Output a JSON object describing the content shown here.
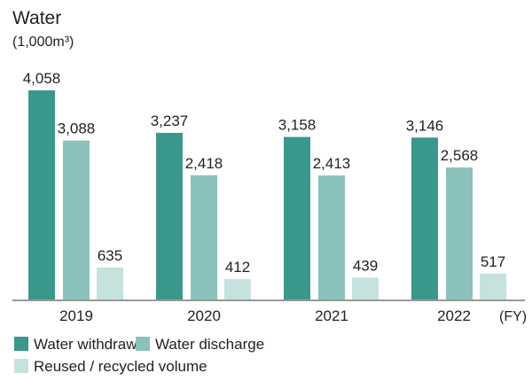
{
  "chart_data": {
    "type": "bar",
    "title": "Water",
    "ylabel": "(1,000m³)",
    "xlabel": "(FY)",
    "categories": [
      "2019",
      "2020",
      "2021",
      "2022"
    ],
    "series": [
      {
        "name": "Water withdrawal",
        "color": "#3a978b",
        "values": [
          4058,
          3237,
          3158,
          3146
        ],
        "labels": [
          "4,058",
          "3,237",
          "3,158",
          "3,146"
        ]
      },
      {
        "name": "Water discharge",
        "color": "#8bc1bb",
        "values": [
          3088,
          2418,
          2413,
          2568
        ],
        "labels": [
          "3,088",
          "2,418",
          "2,413",
          "2,568"
        ]
      },
      {
        "name": "Reused / recycled volume",
        "color": "#c5e2df",
        "values": [
          635,
          412,
          439,
          517
        ],
        "labels": [
          "635",
          "412",
          "439",
          "517"
        ]
      }
    ],
    "ylim": [
      0,
      4058
    ],
    "grid": false,
    "legend_placement": "bottom-left"
  }
}
